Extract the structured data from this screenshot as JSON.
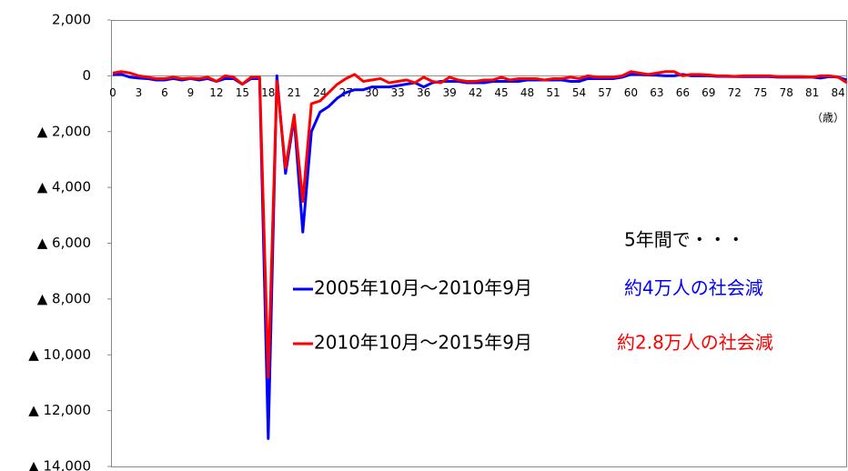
{
  "chart_data": {
    "type": "line",
    "categories": [
      0,
      null,
      null,
      3,
      null,
      null,
      6,
      null,
      null,
      9,
      null,
      null,
      12,
      null,
      null,
      15,
      null,
      null,
      18,
      null,
      null,
      21,
      null,
      null,
      24,
      null,
      null,
      27,
      null,
      null,
      30,
      null,
      null,
      33,
      null,
      null,
      36,
      null,
      null,
      39,
      null,
      null,
      42,
      null,
      null,
      45,
      null,
      null,
      48,
      null,
      null,
      51,
      null,
      null,
      54,
      null,
      null,
      57,
      null,
      null,
      60,
      null,
      null,
      63,
      null,
      null,
      66,
      null,
      null,
      69,
      null,
      null,
      72,
      null,
      null,
      75,
      null,
      null,
      78,
      null,
      null,
      81,
      null,
      null,
      84,
      null
    ],
    "x_label": "（歳）",
    "series": [
      {
        "name": "2005年10月～2010年9月",
        "color": "#0000ff",
        "values": [
          50,
          50,
          -50,
          -80,
          -100,
          -150,
          -150,
          -100,
          -150,
          -100,
          -150,
          -100,
          -200,
          -100,
          -100,
          -300,
          -100,
          -100,
          -13000,
          0,
          -3500,
          -1500,
          -5600,
          -2000,
          -1300,
          -1100,
          -800,
          -600,
          -500,
          -500,
          -400,
          -400,
          -400,
          -350,
          -300,
          -250,
          -400,
          -250,
          -200,
          -200,
          -200,
          -250,
          -250,
          -250,
          -200,
          -200,
          -200,
          -200,
          -150,
          -150,
          -150,
          -150,
          -150,
          -200,
          -200,
          -100,
          -100,
          -100,
          -100,
          -50,
          50,
          50,
          30,
          20,
          0,
          0,
          50,
          0,
          0,
          0,
          -20,
          -20,
          -30,
          -30,
          -30,
          -30,
          -30,
          -50,
          -50,
          -50,
          -50,
          -50,
          -80,
          -30,
          -50,
          -150
        ]
      },
      {
        "name": "2010年10月～2015年9月",
        "color": "#ff0000",
        "values": [
          100,
          150,
          100,
          0,
          -50,
          -100,
          -100,
          -50,
          -100,
          -80,
          -100,
          -50,
          -200,
          0,
          -50,
          -300,
          -50,
          -50,
          -10800,
          -200,
          -3300,
          -1400,
          -4500,
          -1000,
          -900,
          -600,
          -300,
          -100,
          50,
          -200,
          -150,
          -100,
          -250,
          -200,
          -150,
          -250,
          -50,
          -200,
          -250,
          -50,
          -150,
          -200,
          -200,
          -150,
          -150,
          -50,
          -150,
          -100,
          -100,
          -100,
          -150,
          -100,
          -100,
          -50,
          -100,
          0,
          -50,
          -50,
          -50,
          0,
          150,
          100,
          50,
          100,
          150,
          150,
          0,
          50,
          50,
          30,
          0,
          0,
          -20,
          0,
          0,
          0,
          0,
          -30,
          -30,
          -30,
          -30,
          -50,
          0,
          0,
          -50,
          -250
        ]
      }
    ],
    "ylim": [
      2000,
      -14000
    ],
    "yticks": [
      {
        "value": 2000,
        "label": "2,000"
      },
      0,
      {
        "value": -2000,
        "label": "▲ 2,000"
      },
      {
        "value": -4000,
        "label": "▲ 4,000"
      },
      {
        "value": -6000,
        "label": "▲ 6,000"
      },
      {
        "value": -8000,
        "label": "▲ 8,000"
      },
      {
        "value": -10000,
        "label": "▲ 10,000"
      },
      {
        "value": -12000,
        "label": "▲ 12,000"
      },
      {
        "value": -14000,
        "label": "▲ 14,000"
      }
    ],
    "annotations": [
      {
        "text": "5年間で・・・",
        "color": "#000000"
      },
      {
        "text": "約4万人の社会減",
        "color": "#0000ff"
      },
      {
        "text": "約2.8万人の社会減",
        "color": "#ff0000"
      }
    ]
  }
}
